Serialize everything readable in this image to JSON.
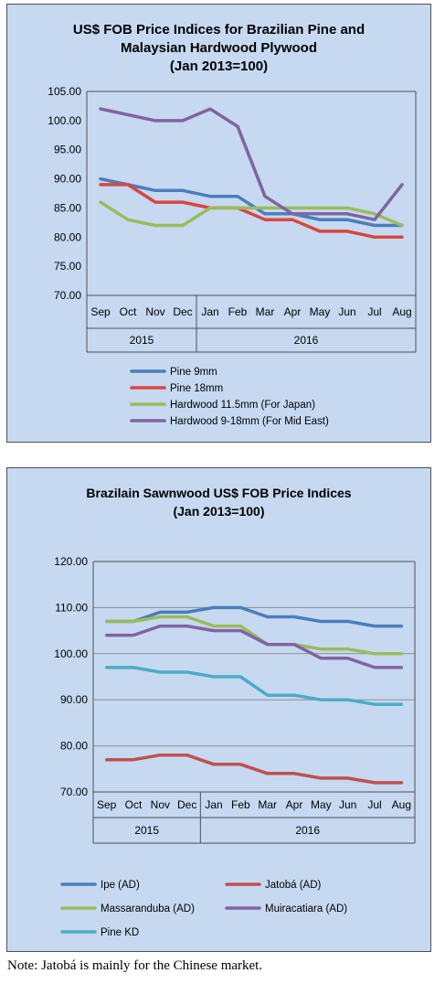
{
  "note": "Note: Jatobá is mainly for the Chinese market.",
  "chart_data": [
    {
      "type": "line",
      "title_lines": [
        "US$ FOB Price Indices for Brazilian Pine and",
        "Malaysian Hardwood Plywood",
        "(Jan 2013=100)"
      ],
      "categories": [
        "Sep",
        "Oct",
        "Nov",
        "Dec",
        "Jan",
        "Feb",
        "Mar",
        "Apr",
        "May",
        "Jun",
        "Jul",
        "Aug"
      ],
      "year_groups": [
        {
          "label": "2015",
          "span": 4
        },
        {
          "label": "2016",
          "span": 8
        }
      ],
      "ylim": [
        70,
        105
      ],
      "yticks": [
        "70.00",
        "75.00",
        "80.00",
        "85.00",
        "90.00",
        "95.00",
        "100.00",
        "105.00"
      ],
      "grid": false,
      "legend_position": "bottom",
      "series": [
        {
          "name": "Pine 9mm",
          "color": "#4a7ebb",
          "values": [
            90,
            89,
            88,
            88,
            87,
            87,
            84,
            84,
            83,
            83,
            82,
            82
          ]
        },
        {
          "name": "Pine 18mm",
          "color": "#d9463f",
          "values": [
            89,
            89,
            86,
            86,
            85,
            85,
            83,
            83,
            81,
            81,
            80,
            80
          ]
        },
        {
          "name": "Hardwood 11.5mm (For Japan)",
          "color": "#9bbb59",
          "values": [
            86,
            83,
            82,
            82,
            85,
            85,
            85,
            85,
            85,
            85,
            84,
            82
          ]
        },
        {
          "name": "Hardwood 9-18mm (For Mid East)",
          "color": "#8064a2",
          "values": [
            102,
            101,
            100,
            100,
            102,
            99,
            87,
            84,
            84,
            84,
            83,
            89
          ]
        }
      ]
    },
    {
      "type": "line",
      "title_lines": [
        "Brazilain Sawnwood US$ FOB Price Indices",
        "(Jan 2013=100)"
      ],
      "categories": [
        "Sep",
        "Oct",
        "Nov",
        "Dec",
        "Jan",
        "Feb",
        "Mar",
        "Apr",
        "May",
        "Jun",
        "Jul",
        "Aug"
      ],
      "year_groups": [
        {
          "label": "2015",
          "span": 4
        },
        {
          "label": "2016",
          "span": 8
        }
      ],
      "ylim": [
        70,
        120
      ],
      "yticks": [
        "70.00",
        "80.00",
        "90.00",
        "100.00",
        "110.00",
        "120.00"
      ],
      "grid": true,
      "legend_position": "bottom",
      "series": [
        {
          "name": "Ipe (AD)",
          "color": "#4a7ebb",
          "values": [
            107,
            107,
            109,
            109,
            110,
            110,
            108,
            108,
            107,
            107,
            106,
            106
          ]
        },
        {
          "name": "Jatobá (AD)",
          "color": "#c0504d",
          "values": [
            77,
            77,
            78,
            78,
            76,
            76,
            74,
            74,
            73,
            73,
            72,
            72
          ]
        },
        {
          "name": "Massaranduba (AD)",
          "color": "#9bbb59",
          "values": [
            107,
            107,
            108,
            108,
            106,
            106,
            102,
            102,
            101,
            101,
            100,
            100
          ]
        },
        {
          "name": "Muiracatiara (AD)",
          "color": "#8064a2",
          "values": [
            104,
            104,
            106,
            106,
            105,
            105,
            102,
            102,
            99,
            99,
            97,
            97
          ]
        },
        {
          "name": "Pine KD",
          "color": "#4bacc6",
          "values": [
            97,
            97,
            96,
            96,
            95,
            95,
            91,
            91,
            90,
            90,
            89,
            89
          ]
        }
      ]
    }
  ]
}
